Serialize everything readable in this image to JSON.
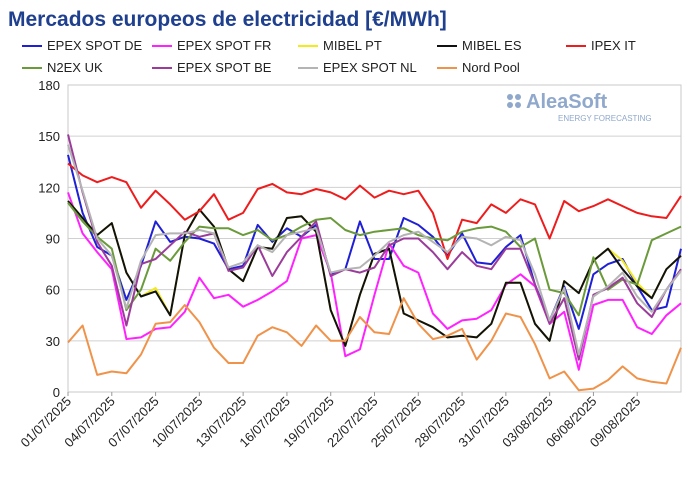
{
  "chart_data": {
    "type": "line",
    "title": "Mercados europeos de electricidad [€/MWh]",
    "logo": "AleaSoft",
    "logo_subtitle": "ENERGY FORECASTING",
    "categories": [
      "01/07/2025",
      null,
      null,
      "04/07/2025",
      null,
      null,
      "07/07/2025",
      null,
      null,
      "10/07/2025",
      null,
      null,
      "13/07/2025",
      null,
      null,
      "16/07/2025",
      null,
      null,
      "19/07/2025",
      null,
      null,
      "22/07/2025",
      null,
      null,
      "25/07/2025",
      null,
      null,
      "28/07/2025",
      null,
      null,
      "31/07/2025",
      null,
      null,
      "03/08/2025",
      null,
      null,
      "06/08/2025",
      null,
      null,
      "09/08/2025",
      null,
      null,
      null
    ],
    "ylim": [
      0,
      180
    ],
    "yticks": [
      0,
      30,
      60,
      90,
      120,
      150,
      180
    ],
    "grid": true,
    "series": [
      {
        "name": "EPEX SPOT DE",
        "color": "#1f1fd6",
        "values": [
          139,
          105,
          85,
          80,
          54,
          74,
          100,
          88,
          91,
          90,
          87,
          72,
          74,
          98,
          88,
          96,
          91,
          98,
          69,
          72,
          100,
          78,
          78,
          102,
          98,
          91,
          80,
          93,
          76,
          75,
          85,
          92,
          63,
          42,
          62,
          37,
          69,
          75,
          78,
          62,
          48,
          50,
          84
        ]
      },
      {
        "name": "EPEX SPOT FR",
        "color": "#ff22ff",
        "values": [
          117,
          93,
          82,
          72,
          31,
          32,
          37,
          38,
          47,
          67,
          55,
          57,
          50,
          54,
          59,
          65,
          90,
          92,
          70,
          21,
          25,
          57,
          87,
          74,
          70,
          46,
          37,
          42,
          43,
          48,
          63,
          69,
          62,
          40,
          47,
          13,
          51,
          54,
          54,
          38,
          34,
          45,
          52
        ]
      },
      {
        "name": "MIBEL PT",
        "color": "#f2ea1a",
        "values": [
          112,
          102,
          92,
          99,
          70,
          56,
          61,
          45,
          92,
          107,
          97,
          72,
          65,
          85,
          84,
          102,
          103,
          94,
          48,
          27,
          57,
          81,
          84,
          46,
          42,
          38,
          32,
          33,
          32,
          40,
          64,
          64,
          40,
          30,
          65,
          58,
          77,
          84,
          77,
          64,
          55,
          72,
          80
        ]
      },
      {
        "name": "MIBEL ES",
        "color": "#111111",
        "values": [
          112,
          102,
          92,
          99,
          70,
          56,
          59,
          45,
          92,
          107,
          97,
          72,
          65,
          85,
          84,
          102,
          103,
          94,
          48,
          27,
          57,
          81,
          84,
          46,
          42,
          38,
          32,
          33,
          32,
          40,
          64,
          64,
          40,
          30,
          65,
          58,
          77,
          84,
          72,
          62,
          55,
          72,
          80
        ]
      },
      {
        "name": "IPEX IT",
        "color": "#ee1c1c",
        "values": [
          134,
          127,
          123,
          126,
          123,
          108,
          118,
          110,
          101,
          106,
          116,
          101,
          105,
          119,
          122,
          117,
          116,
          119,
          117,
          113,
          121,
          114,
          118,
          116,
          118,
          105,
          78,
          101,
          99,
          110,
          105,
          113,
          110,
          90,
          112,
          106,
          109,
          113,
          109,
          105,
          103,
          102,
          115
        ]
      },
      {
        "name": "N2EX UK",
        "color": "#6a9a3a",
        "values": [
          111,
          100,
          91,
          84,
          48,
          60,
          84,
          77,
          88,
          97,
          96,
          96,
          92,
          95,
          89,
          92,
          97,
          101,
          102,
          95,
          92,
          94,
          95,
          96,
          92,
          90,
          89,
          94,
          96,
          97,
          94,
          85,
          90,
          60,
          58,
          45,
          79,
          60,
          66,
          63,
          89,
          93,
          97
        ]
      },
      {
        "name": "EPEX SPOT BE",
        "color": "#9b3c9b",
        "values": [
          151,
          117,
          88,
          74,
          39,
          75,
          78,
          86,
          94,
          91,
          93,
          71,
          73,
          86,
          68,
          82,
          91,
          100,
          68,
          72,
          70,
          73,
          86,
          90,
          90,
          82,
          72,
          82,
          74,
          72,
          84,
          84,
          63,
          40,
          55,
          19,
          57,
          61,
          67,
          52,
          44,
          60,
          72
        ]
      },
      {
        "name": "EPEX SPOT NL",
        "color": "#b4b4b4",
        "values": [
          145,
          118,
          90,
          80,
          49,
          77,
          92,
          93,
          93,
          95,
          93,
          73,
          76,
          86,
          82,
          92,
          94,
          96,
          70,
          72,
          73,
          80,
          88,
          92,
          94,
          88,
          82,
          91,
          90,
          86,
          91,
          89,
          69,
          42,
          61,
          22,
          56,
          62,
          70,
          56,
          47,
          60,
          71
        ]
      },
      {
        "name": "Nord Pool",
        "color": "#f0934a",
        "values": [
          29,
          39,
          10,
          12,
          11,
          22,
          40,
          41,
          51,
          41,
          26,
          17,
          17,
          33,
          38,
          35,
          27,
          39,
          30,
          30,
          44,
          35,
          34,
          55,
          40,
          31,
          33,
          37,
          19,
          30,
          46,
          44,
          28,
          8,
          12,
          1,
          2,
          7,
          15,
          8,
          6,
          5,
          26
        ]
      }
    ]
  }
}
